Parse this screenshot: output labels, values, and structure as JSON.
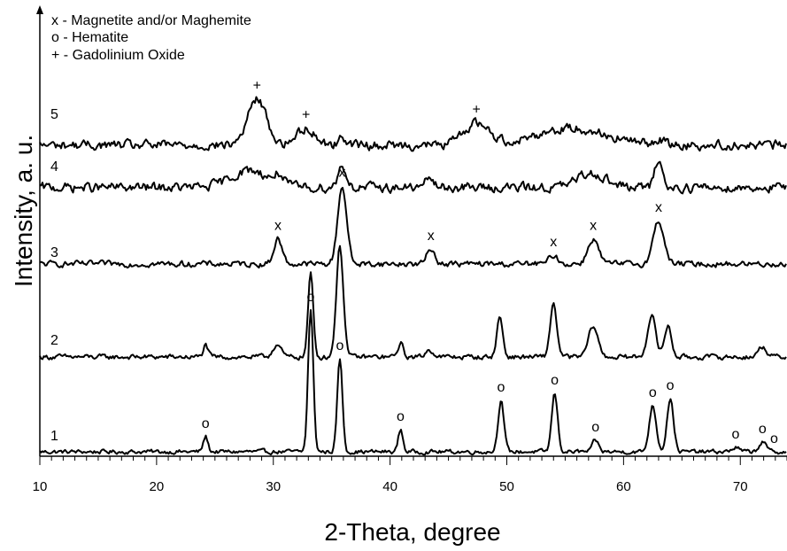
{
  "chart_data": {
    "type": "line",
    "title": "",
    "xlabel": "2-Theta, degree",
    "ylabel": "Intensity, a. u.",
    "xlim": [
      10,
      74
    ],
    "xticks": [
      10,
      20,
      30,
      40,
      50,
      60,
      70
    ],
    "grid": false,
    "legend": {
      "placement": "top-left",
      "entries": [
        {
          "symbol": "x",
          "text": "x - Magnetite and/or Maghemite"
        },
        {
          "symbol": "o",
          "text": "o - Hematite"
        },
        {
          "symbol": "+",
          "text": "+ - Gadolinium Oxide"
        }
      ]
    },
    "series": [
      {
        "name": "1",
        "baseline": 0.0,
        "noise": 0.02,
        "peaks": [
          [
            24.2,
            0.17,
            0.2
          ],
          [
            33.2,
            1.6,
            0.22
          ],
          [
            35.7,
            1.05,
            0.22
          ],
          [
            40.9,
            0.25,
            0.2
          ],
          [
            49.5,
            0.58,
            0.25
          ],
          [
            54.1,
            0.66,
            0.25
          ],
          [
            57.6,
            0.13,
            0.25
          ],
          [
            62.5,
            0.52,
            0.3
          ],
          [
            64.0,
            0.6,
            0.28
          ],
          [
            69.6,
            0.05,
            0.3
          ],
          [
            71.9,
            0.11,
            0.3
          ]
        ],
        "markers": [
          {
            "symbol": "o",
            "x": 24.2
          },
          {
            "symbol": "o",
            "x": 33.2
          },
          {
            "symbol": "o",
            "x": 35.7
          },
          {
            "symbol": "o",
            "x": 40.9
          },
          {
            "symbol": "o",
            "x": 49.5
          },
          {
            "symbol": "o",
            "x": 54.1
          },
          {
            "symbol": "o",
            "x": 57.6
          },
          {
            "symbol": "o",
            "x": 62.5
          },
          {
            "symbol": "o",
            "x": 64.0
          },
          {
            "symbol": "o",
            "x": 69.6
          },
          {
            "symbol": "o",
            "x": 71.9
          },
          {
            "symbol": "o",
            "x": 72.9
          }
        ]
      },
      {
        "name": "2",
        "baseline": 0.0,
        "noise": 0.03,
        "peaks": [
          [
            24.2,
            0.17,
            0.2
          ],
          [
            30.3,
            0.18,
            0.35
          ],
          [
            33.2,
            1.2,
            0.22
          ],
          [
            35.7,
            1.6,
            0.3
          ],
          [
            40.9,
            0.2,
            0.22
          ],
          [
            43.4,
            0.1,
            0.35
          ],
          [
            49.4,
            0.58,
            0.25
          ],
          [
            54.0,
            0.78,
            0.28
          ],
          [
            57.4,
            0.45,
            0.4
          ],
          [
            62.4,
            0.6,
            0.35
          ],
          [
            63.8,
            0.45,
            0.3
          ],
          [
            71.9,
            0.15,
            0.35
          ]
        ],
        "markers": []
      },
      {
        "name": "3",
        "baseline": 0.0,
        "noise": 0.04,
        "peaks": [
          [
            30.4,
            0.42,
            0.35
          ],
          [
            35.9,
            1.3,
            0.38
          ],
          [
            43.5,
            0.25,
            0.35
          ],
          [
            54.0,
            0.15,
            0.35
          ],
          [
            57.4,
            0.42,
            0.45
          ],
          [
            63.0,
            0.72,
            0.45
          ]
        ],
        "markers": [
          {
            "symbol": "x",
            "x": 30.4
          },
          {
            "symbol": "x",
            "x": 35.9
          },
          {
            "symbol": "x",
            "x": 43.5
          },
          {
            "symbol": "x",
            "x": 54.0
          },
          {
            "symbol": "x",
            "x": 57.4
          },
          {
            "symbol": "x",
            "x": 63.0
          }
        ]
      },
      {
        "name": "4",
        "baseline": 0.06,
        "noise": 0.08,
        "peaks": [
          [
            28.0,
            0.35,
            1.6
          ],
          [
            30.5,
            0.2,
            0.35
          ],
          [
            35.9,
            0.45,
            0.35
          ],
          [
            43.4,
            0.22,
            0.3
          ],
          [
            57.3,
            0.3,
            1.2
          ],
          [
            63.0,
            0.6,
            0.3
          ]
        ],
        "markers": []
      },
      {
        "name": "5",
        "baseline": 0.02,
        "noise": 0.08,
        "peaks": [
          [
            28.6,
            0.95,
            0.8
          ],
          [
            32.8,
            0.35,
            0.8
          ],
          [
            36.0,
            0.15,
            0.4
          ],
          [
            47.4,
            0.45,
            1.1
          ],
          [
            55.5,
            0.35,
            3.0
          ],
          [
            63.0,
            0.12,
            0.4
          ]
        ],
        "markers": [
          {
            "symbol": "+",
            "x": 28.6
          },
          {
            "symbol": "+",
            "x": 32.8
          },
          {
            "symbol": "+",
            "x": 47.4
          }
        ]
      }
    ]
  }
}
